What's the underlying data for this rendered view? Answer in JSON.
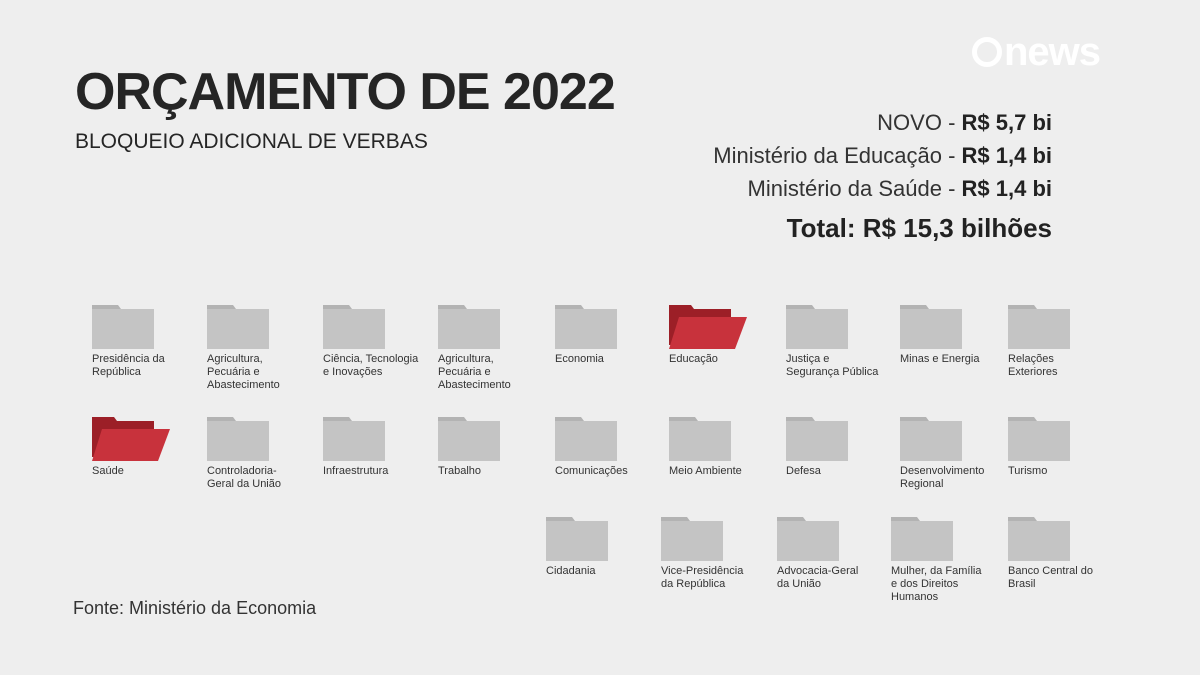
{
  "header": {
    "title": "ORÇAMENTO DE 2022",
    "subtitle": "BLOQUEIO ADICIONAL DE VERBAS",
    "logo_text": "news"
  },
  "summary": {
    "lines": [
      {
        "label": "NOVO - ",
        "value": "R$ 5,7 bi"
      },
      {
        "label": "Ministério da Educação - ",
        "value": "R$ 1,4 bi"
      },
      {
        "label": "Ministério da Saúde - ",
        "value": "R$ 1,4 bi"
      }
    ],
    "total": "Total: R$ 15,3 bilhões"
  },
  "source": "Fonte: Ministério da Economia",
  "colors": {
    "background": "#eeeeee",
    "folder_gray": "#c4c4c4",
    "folder_gray_dark": "#b3b3b3",
    "folder_red": "#c8323c",
    "folder_red_dark": "#9c1f27"
  },
  "folders": [
    {
      "label": "Presidência da República",
      "highlight": false
    },
    {
      "label": "Agricultura, Pecuária e Abastecimento",
      "highlight": false
    },
    {
      "label": "Ciência, Tecnologia e Inovações",
      "highlight": false
    },
    {
      "label": "Agricultura, Pecuária e Abastecimento",
      "highlight": false
    },
    {
      "label": "Economia",
      "highlight": false
    },
    {
      "label": "Educação",
      "highlight": true
    },
    {
      "label": "Justiça e Segurança Pública",
      "highlight": false
    },
    {
      "label": "Minas e Energia",
      "highlight": false
    },
    {
      "label": "Relações Exteriores",
      "highlight": false
    },
    {
      "label": "Saúde",
      "highlight": true
    },
    {
      "label": "Controladoria-Geral da União",
      "highlight": false
    },
    {
      "label": "Infraestrutura",
      "highlight": false
    },
    {
      "label": "Trabalho",
      "highlight": false
    },
    {
      "label": "Comunicações",
      "highlight": false
    },
    {
      "label": "Meio Ambiente",
      "highlight": false
    },
    {
      "label": "Defesa",
      "highlight": false
    },
    {
      "label": "Desenvolvimento Regional",
      "highlight": false
    },
    {
      "label": "Turismo",
      "highlight": false
    },
    {
      "label": "Cidadania",
      "highlight": false
    },
    {
      "label": "Vice-Presidência da República",
      "highlight": false
    },
    {
      "label": "Advocacia-Geral da União",
      "highlight": false
    },
    {
      "label": "Mulher, da Família e dos Direitos Humanos",
      "highlight": false
    },
    {
      "label": "Banco Central do Brasil",
      "highlight": false
    }
  ]
}
